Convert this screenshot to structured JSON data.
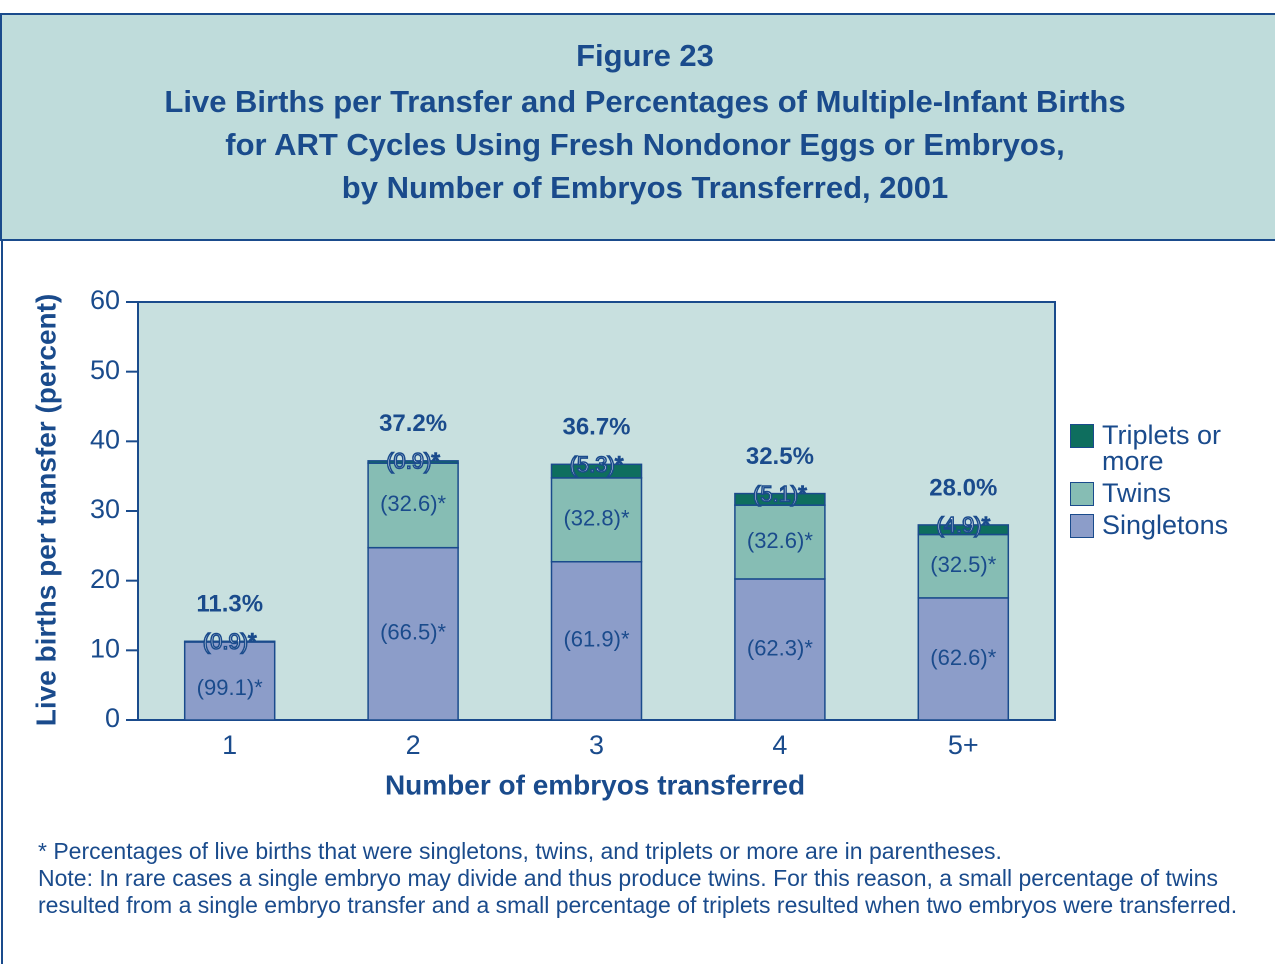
{
  "chart_data": {
    "type": "bar",
    "figure": "Figure 23",
    "title": [
      "Live Births per Transfer and Percentages of Multiple-Infant Births",
      "for ART Cycles Using Fresh Nondonor Eggs or Embryos,",
      "by Number of Embryos Transferred, 2001"
    ],
    "xlabel": "Number of embryos transferred",
    "ylabel": "Live births per transfer (percent)",
    "categories": [
      "1",
      "2",
      "3",
      "4",
      "5+"
    ],
    "values": [
      11.3,
      37.2,
      36.7,
      32.5,
      28.0
    ],
    "value_labels": [
      "11.3%",
      "37.2%",
      "36.7%",
      "32.5%",
      "28.0%"
    ],
    "series": [
      {
        "name": "Singletons",
        "color": "#8c9dc9",
        "values": [
          99.1,
          66.5,
          61.9,
          62.3,
          62.6
        ],
        "value_labels": [
          "(99.1)*",
          "(66.5)*",
          "(61.9)*",
          "(62.3)*",
          "(62.6)*"
        ]
      },
      {
        "name": "Twins",
        "color": "#86bdb4",
        "values": [
          0.9,
          32.6,
          32.8,
          32.6,
          32.5
        ],
        "value_labels": [
          "(0.9)*",
          "(32.6)*",
          "(32.8)*",
          "(32.6)*",
          "(32.5)*"
        ]
      },
      {
        "name": "Triplets or more",
        "color": "#0e6e5e",
        "values": [
          null,
          0.9,
          5.3,
          5.1,
          4.9
        ],
        "value_labels": [
          null,
          "(0.9)*",
          "(5.3)*",
          "(5.1)*",
          "(4.9)*"
        ]
      }
    ],
    "ylim": [
      0,
      60
    ],
    "yticks": [
      0,
      10,
      20,
      30,
      40,
      50,
      60
    ],
    "notes": [
      "* Percentages of live births that were singletons, twins, and triplets or more are in parentheses.",
      "Note: In rare cases a single embryo may divide and thus produce twins. For this reason, a small percentage of twins resulted from a single embryo transfer and a small percentage of triplets resulted when two embryos were transferred."
    ]
  }
}
